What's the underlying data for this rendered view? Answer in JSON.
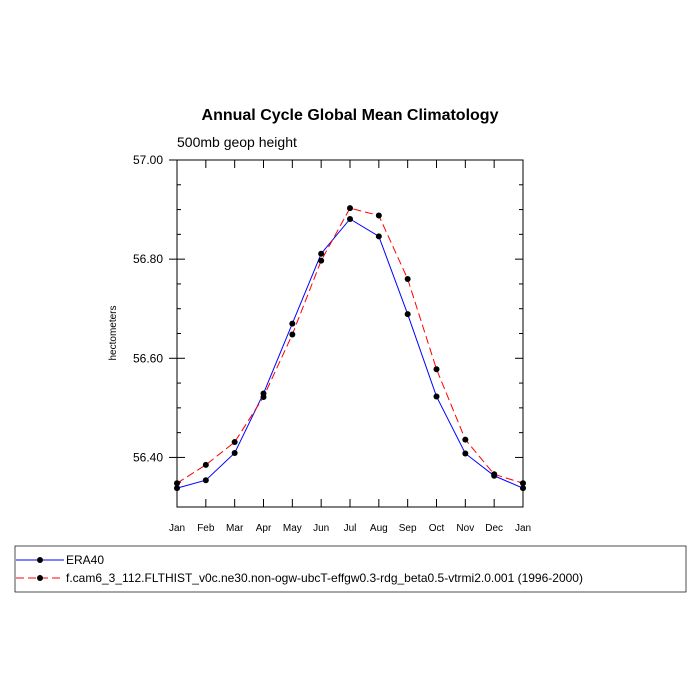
{
  "chart_data": {
    "type": "line",
    "title": "Annual Cycle Global Mean Climatology",
    "subtitle": "500mb geop height",
    "ylabel": "hectometers",
    "xlabel": "",
    "ylim": [
      56.3,
      57.0
    ],
    "yticks": [
      56.4,
      56.6,
      56.8,
      57.0
    ],
    "ytick_labels": [
      "56.40",
      "56.60",
      "56.80",
      "57.00"
    ],
    "yminor_step": 0.05,
    "categories": [
      "Jan",
      "Feb",
      "Mar",
      "Apr",
      "May",
      "Jun",
      "Jul",
      "Aug",
      "Sep",
      "Oct",
      "Nov",
      "Dec",
      "Jan"
    ],
    "grid": false,
    "legend_position": "bottom",
    "series": [
      {
        "name": "ERA40",
        "color": "#0000ff",
        "dash": "solid",
        "marker": "filled-circle",
        "values": [
          56.338,
          56.354,
          56.409,
          56.529,
          56.67,
          56.811,
          56.881,
          56.846,
          56.689,
          56.523,
          56.408,
          56.363,
          56.338
        ]
      },
      {
        "name": "f.cam6_3_112.FLTHIST_v0c.ne30.non-ogw-ubcT-effgw0.3-rdg_beta0.5-vtrmi2.0.001 (1996-2000)",
        "color": "#ff0000",
        "dash": "dashed",
        "marker": "filled-circle",
        "values": [
          56.348,
          56.385,
          56.431,
          56.522,
          56.648,
          56.797,
          56.903,
          56.888,
          56.76,
          56.578,
          56.436,
          56.366,
          56.348
        ]
      }
    ]
  }
}
